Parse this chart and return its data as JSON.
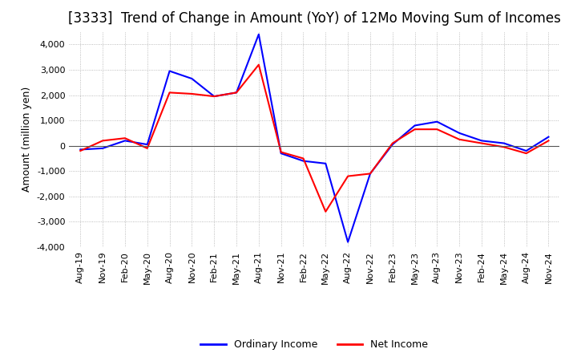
{
  "title": "[3333]  Trend of Change in Amount (YoY) of 12Mo Moving Sum of Incomes",
  "ylabel": "Amount (million yen)",
  "ylim": [
    -4000,
    4500
  ],
  "yticks": [
    -4000,
    -3000,
    -2000,
    -1000,
    0,
    1000,
    2000,
    3000,
    4000
  ],
  "legend_labels": [
    "Ordinary Income",
    "Net Income"
  ],
  "line_colors": [
    "#0000ff",
    "#ff0000"
  ],
  "x_labels": [
    "Aug-19",
    "Nov-19",
    "Feb-20",
    "May-20",
    "Aug-20",
    "Nov-20",
    "Feb-21",
    "May-21",
    "Aug-21",
    "Nov-21",
    "Feb-22",
    "May-22",
    "Aug-22",
    "Nov-22",
    "Feb-23",
    "May-23",
    "Aug-23",
    "Nov-23",
    "Feb-24",
    "May-24",
    "Aug-24",
    "Nov-24"
  ],
  "ordinary_income": [
    -150,
    -100,
    200,
    50,
    2950,
    2650,
    1950,
    2100,
    4400,
    -300,
    -600,
    -700,
    -3800,
    -1100,
    50,
    800,
    950,
    500,
    200,
    100,
    -200,
    350
  ],
  "net_income": [
    -200,
    200,
    300,
    -100,
    2100,
    2050,
    1950,
    2100,
    3200,
    -250,
    -500,
    -2600,
    -1200,
    -1100,
    100,
    650,
    650,
    250,
    100,
    -50,
    -300,
    200
  ],
  "background_color": "#ffffff",
  "grid_color": "#aaaaaa",
  "title_fontsize": 12,
  "axis_fontsize": 9,
  "tick_fontsize": 8,
  "linewidth": 1.5
}
